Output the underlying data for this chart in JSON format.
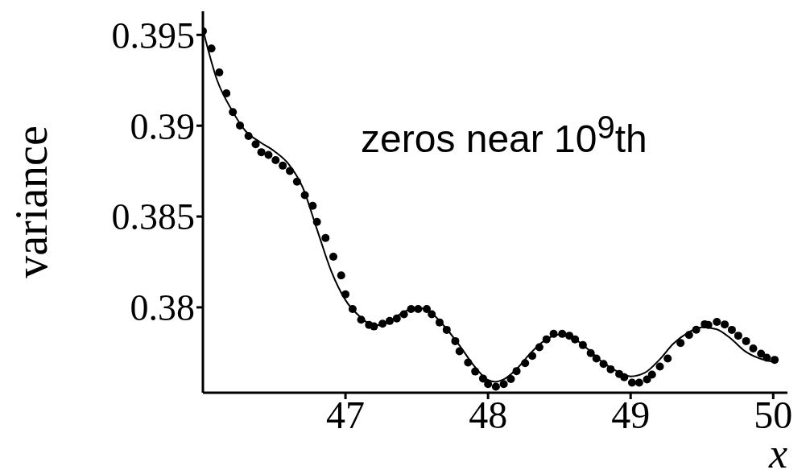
{
  "chart_data": {
    "type": "scatter",
    "xlabel": "x",
    "ylabel": "variance",
    "annotations": [
      "zeros near 10$^{9}$th"
    ],
    "xlim": [
      46,
      50.1
    ],
    "xticks": [
      47,
      48,
      49,
      50
    ],
    "ylim": [
      0.3753,
      0.3963
    ],
    "yticks": [
      0.38,
      0.385,
      0.39,
      0.395
    ],
    "grid": false,
    "legend": false,
    "series": [
      {
        "marker": "circle",
        "color": "#000000",
        "x": [
          46.0,
          46.06,
          46.115,
          46.165,
          46.21,
          46.26,
          46.32,
          46.37,
          46.41,
          46.46,
          46.51,
          46.56,
          46.61,
          46.66,
          46.715,
          46.77,
          46.8,
          46.86,
          46.915,
          46.97,
          47.0,
          47.05,
          47.11,
          47.165,
          47.2,
          47.26,
          47.31,
          47.36,
          47.41,
          47.46,
          47.51,
          47.57,
          47.605,
          47.66,
          47.71,
          47.77,
          47.8,
          47.86,
          47.91,
          47.965,
          48.0,
          48.055,
          48.11,
          48.16,
          48.2,
          48.26,
          48.31,
          48.36,
          48.41,
          48.46,
          48.52,
          48.57,
          48.61,
          48.665,
          48.72,
          48.76,
          48.81,
          48.86,
          48.92,
          48.955,
          49.01,
          49.06,
          49.115,
          49.15,
          49.205,
          49.26,
          49.35,
          49.41,
          49.46,
          49.52,
          49.545,
          49.605,
          49.66,
          49.71,
          49.755,
          49.81,
          49.86,
          49.915,
          49.955,
          50.01
        ],
        "values": [
          0.3952,
          0.39425,
          0.39293,
          0.39178,
          0.39075,
          0.39001,
          0.38943,
          0.38898,
          0.38854,
          0.38839,
          0.3881,
          0.3878,
          0.38751,
          0.38692,
          0.38618,
          0.38559,
          0.3847,
          0.38382,
          0.38279,
          0.38176,
          0.38072,
          0.37991,
          0.37932,
          0.37903,
          0.37895,
          0.3791,
          0.37925,
          0.37939,
          0.37962,
          0.37991,
          0.37991,
          0.37991,
          0.37962,
          0.37917,
          0.37876,
          0.37814,
          0.37758,
          0.37696,
          0.37647,
          0.37608,
          0.37578,
          0.37563,
          0.37578,
          0.37605,
          0.37649,
          0.37693,
          0.37733,
          0.3778,
          0.37824,
          0.37854,
          0.37854,
          0.37844,
          0.37824,
          0.37792,
          0.37748,
          0.37718,
          0.37688,
          0.37659,
          0.37633,
          0.37615,
          0.37585,
          0.37585,
          0.37603,
          0.3763,
          0.37674,
          0.37718,
          0.37804,
          0.37848,
          0.37877,
          0.37907,
          0.37903,
          0.3792,
          0.37906,
          0.37876,
          0.37844,
          0.37814,
          0.37774,
          0.37745,
          0.37723,
          0.37711
        ]
      },
      {
        "type": "line",
        "marker": "none",
        "line_style": "solid",
        "color": "#000000",
        "x": [
          46.0,
          46.1,
          46.2,
          46.3,
          46.4,
          46.5,
          46.6,
          46.7,
          46.8,
          46.9,
          47.0,
          47.1,
          47.2,
          47.3,
          47.4,
          47.5,
          47.6,
          47.7,
          47.8,
          47.9,
          48.0,
          48.05,
          48.1,
          48.2,
          48.3,
          48.4,
          48.5,
          48.6,
          48.7,
          48.8,
          48.9,
          49.0,
          49.1,
          49.2,
          49.3,
          49.4,
          49.5,
          49.6,
          49.7,
          49.8,
          49.9,
          50.0
        ],
        "values": [
          0.3953,
          0.3925,
          0.3909,
          0.3897,
          0.3891,
          0.3886,
          0.3879,
          0.3866,
          0.3843,
          0.382,
          0.3804,
          0.3795,
          0.379,
          0.3792,
          0.3797,
          0.38,
          0.3797,
          0.3789,
          0.3779,
          0.3768,
          0.376,
          0.3759,
          0.376,
          0.3766,
          0.3775,
          0.3782,
          0.3785,
          0.3783,
          0.3777,
          0.377,
          0.3765,
          0.3762,
          0.3764,
          0.3771,
          0.378,
          0.3786,
          0.3789,
          0.3788,
          0.3783,
          0.3776,
          0.3772,
          0.377
        ]
      }
    ]
  }
}
